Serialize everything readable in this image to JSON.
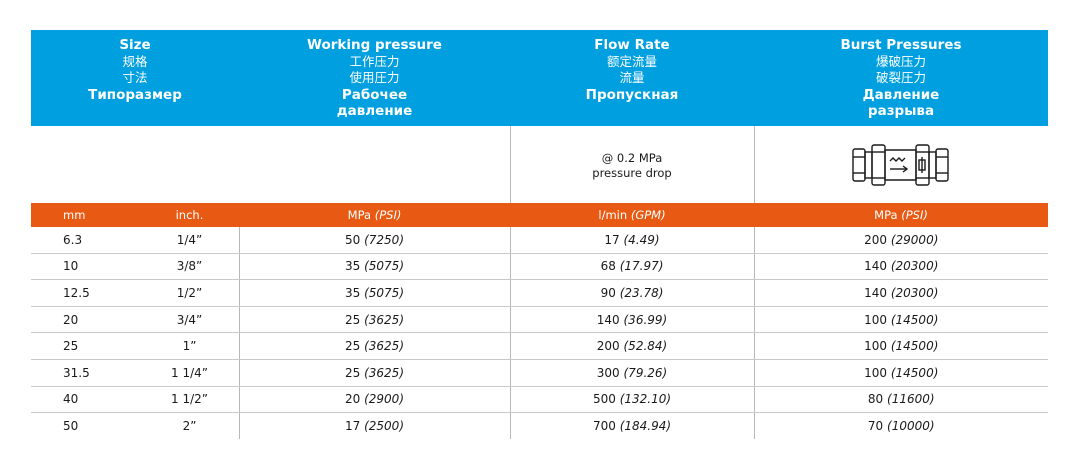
{
  "columns": [
    {
      "en": "Size",
      "zh1": "规格",
      "zh2": "寸法",
      "ru": "Типоразмер",
      "ru2": ""
    },
    {
      "en": "Working pressure",
      "zh1": "工作压力",
      "zh2": "使用圧力",
      "ru": "Рабочее",
      "ru2": "давление"
    },
    {
      "en": "Flow Rate",
      "zh1": "额定流量",
      "zh2": "流量",
      "ru": "Пропускная",
      "ru2": ""
    },
    {
      "en": "Burst Pressures",
      "zh1": "爆破压力",
      "zh2": "破裂圧力",
      "ru": "Давление",
      "ru2": "разрыва"
    }
  ],
  "flow_note": {
    "line1": "@ 0.2 MPa",
    "line2": "pressure drop"
  },
  "units": {
    "mm": "mm",
    "inch": "inch.",
    "pressure_main": "MPa",
    "pressure_alt": "(PSI)",
    "flow_main": "l/min",
    "flow_alt": "(GPM)",
    "burst_main": "MPa",
    "burst_alt": "(PSI)"
  },
  "rows": [
    {
      "mm": "6.3",
      "inch": "1/4”",
      "wp": "50",
      "wp_psi": "(7250)",
      "flow": "17",
      "flow_gpm": "(4.49)",
      "burst": "200",
      "burst_psi": "(29000)"
    },
    {
      "mm": "10",
      "inch": "3/8”",
      "wp": "35",
      "wp_psi": "(5075)",
      "flow": "68",
      "flow_gpm": "(17.97)",
      "burst": "140",
      "burst_psi": "(20300)"
    },
    {
      "mm": "12.5",
      "inch": "1/2”",
      "wp": "35",
      "wp_psi": "(5075)",
      "flow": "90",
      "flow_gpm": "(23.78)",
      "burst": "140",
      "burst_psi": "(20300)"
    },
    {
      "mm": "20",
      "inch": "3/4”",
      "wp": "25",
      "wp_psi": "(3625)",
      "flow": "140",
      "flow_gpm": "(36.99)",
      "burst": "100",
      "burst_psi": "(14500)"
    },
    {
      "mm": "25",
      "inch": "1”",
      "wp": "25",
      "wp_psi": "(3625)",
      "flow": "200",
      "flow_gpm": "(52.84)",
      "burst": "100",
      "burst_psi": "(14500)"
    },
    {
      "mm": "31.5",
      "inch": "1 1/4”",
      "wp": "25",
      "wp_psi": "(3625)",
      "flow": "300",
      "flow_gpm": "(79.26)",
      "burst": "100",
      "burst_psi": "(14500)"
    },
    {
      "mm": "40",
      "inch": "1 1/2”",
      "wp": "20",
      "wp_psi": "(2900)",
      "flow": "500",
      "flow_gpm": "(132.10)",
      "burst": "80",
      "burst_psi": "(11600)"
    },
    {
      "mm": "50",
      "inch": "2”",
      "wp": "17",
      "wp_psi": "(2500)",
      "flow": "700",
      "flow_gpm": "(184.94)",
      "burst": "70",
      "burst_psi": "(10000)"
    }
  ],
  "colors": {
    "header": "#009fe0",
    "units_bar": "#e85a13"
  },
  "icons": {
    "burst_column": "check-valve-icon"
  }
}
